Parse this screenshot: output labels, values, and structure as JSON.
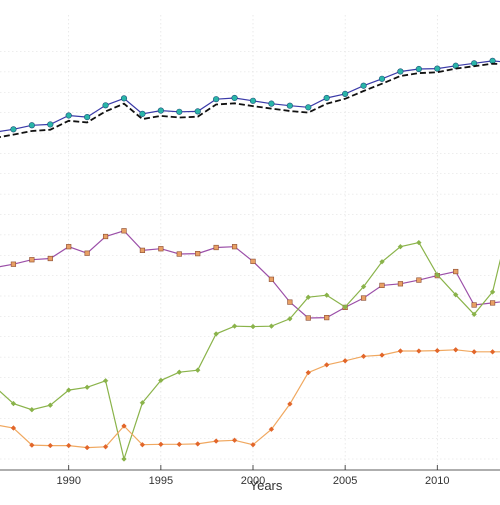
{
  "chart_data": {
    "type": "line",
    "xlabel": "Years",
    "ylabel": "",
    "xlim": [
      1986,
      2014
    ],
    "ylim": [
      0,
      100
    ],
    "xticks": [
      1990,
      1995,
      2000,
      2005,
      2010
    ],
    "grid": true,
    "x": [
      1986,
      1987,
      1988,
      1989,
      1990,
      1991,
      1992,
      1993,
      1994,
      1995,
      1996,
      1997,
      1998,
      1999,
      2000,
      2001,
      2002,
      2003,
      2004,
      2005,
      2006,
      2007,
      2008,
      2009,
      2010,
      2011,
      2012,
      2013,
      2014
    ],
    "series": [
      {
        "color": "#3a3aa8",
        "marker_color": "#2ab5a8",
        "marker": "circle",
        "style": "solid",
        "values": [
          80.2,
          80.9,
          81.9,
          82.1,
          84.3,
          83.9,
          86.8,
          88.5,
          84.7,
          85.5,
          85.2,
          85.3,
          88.3,
          88.6,
          87.9,
          87.2,
          86.7,
          86.3,
          88.6,
          89.6,
          91.6,
          93.3,
          95.1,
          95.7,
          95.8,
          96.5,
          97.1,
          97.7,
          97.3
        ]
      },
      {
        "color": "#111111",
        "style": "dashed",
        "values": [
          78.8,
          79.6,
          80.5,
          80.8,
          83.0,
          82.6,
          85.3,
          87.2,
          83.4,
          84.2,
          83.8,
          84.0,
          87.0,
          87.3,
          86.6,
          86.0,
          85.4,
          85.0,
          87.2,
          88.4,
          90.3,
          92.1,
          94.0,
          94.7,
          94.9,
          95.8,
          96.4,
          97.0,
          96.8
        ]
      },
      {
        "color": "#9b4fa8",
        "marker_color": "#e8a065",
        "marker": "square",
        "style": "solid",
        "values": [
          47.0,
          47.8,
          48.9,
          49.2,
          52.1,
          50.5,
          54.6,
          56.0,
          51.2,
          51.6,
          50.3,
          50.4,
          51.9,
          52.1,
          48.5,
          44.1,
          38.5,
          34.6,
          34.7,
          37.2,
          39.5,
          42.6,
          43.0,
          43.9,
          45.0,
          46.0,
          37.8,
          38.3,
          38.9
        ]
      },
      {
        "color": "#8ab34a",
        "marker": "diamond",
        "style": "solid",
        "values": [
          17.7,
          13.6,
          12.1,
          13.2,
          16.9,
          17.6,
          19.2,
          0.0,
          13.8,
          19.3,
          21.3,
          21.8,
          30.7,
          32.6,
          32.5,
          32.6,
          34.4,
          39.7,
          40.2,
          37.3,
          42.3,
          48.4,
          52.1,
          53.1,
          45.2,
          40.3,
          35.5,
          41.0,
          59.7
        ]
      },
      {
        "color": "#f0a860",
        "marker_color": "#e2662a",
        "marker": "diamond",
        "style": "solid",
        "values": [
          8.4,
          7.6,
          3.4,
          3.3,
          3.3,
          2.8,
          3.0,
          8.1,
          3.5,
          3.6,
          3.6,
          3.7,
          4.4,
          4.6,
          3.5,
          7.3,
          13.5,
          21.2,
          23.1,
          24.1,
          25.2,
          25.5,
          26.5,
          26.5,
          26.6,
          26.8,
          26.3,
          26.3,
          26.3
        ]
      }
    ]
  }
}
